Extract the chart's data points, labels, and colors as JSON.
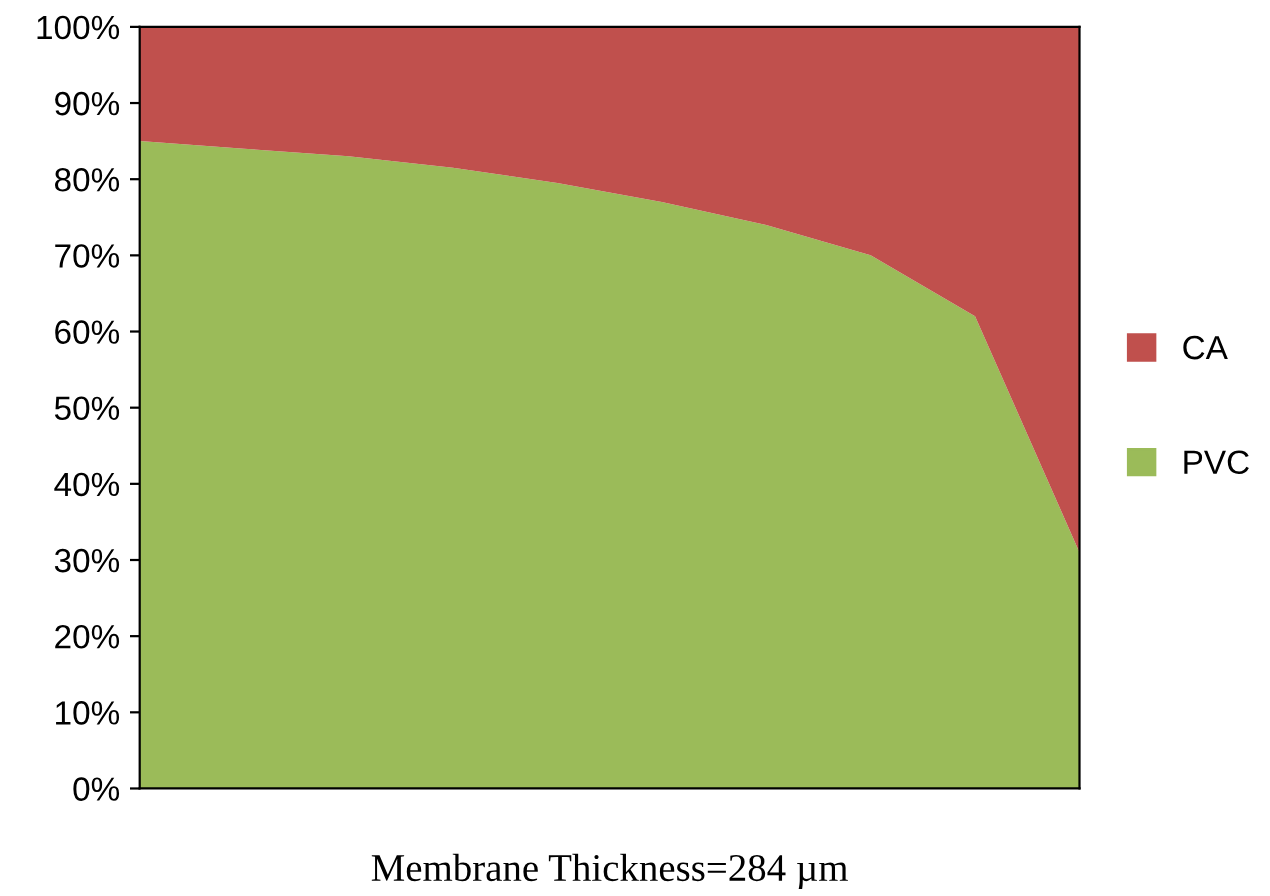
{
  "chart_data": {
    "type": "area",
    "stacked": true,
    "xlabel": "Membrane Thickness=284 µm",
    "categories": [
      null,
      null,
      null,
      null,
      null,
      null,
      null,
      null,
      null,
      null
    ],
    "series": [
      {
        "name": "PVC",
        "color": "#9bbb59",
        "values": [
          85,
          84,
          83,
          81.5,
          79.5,
          77,
          74,
          70,
          62,
          31
        ]
      },
      {
        "name": "CA",
        "color": "#c0504d",
        "values": [
          15,
          16,
          17,
          18.5,
          20.5,
          23,
          26,
          30,
          38,
          69
        ]
      }
    ],
    "ylim": [
      0,
      100
    ],
    "yticks": [
      {
        "value": 0,
        "label": "0%"
      },
      {
        "value": 10,
        "label": "10%"
      },
      {
        "value": 20,
        "label": "20%"
      },
      {
        "value": 30,
        "label": "30%"
      },
      {
        "value": 40,
        "label": "40%"
      },
      {
        "value": 50,
        "label": "50%"
      },
      {
        "value": 60,
        "label": "60%"
      },
      {
        "value": 70,
        "label": "70%"
      },
      {
        "value": 80,
        "label": "80%"
      },
      {
        "value": 90,
        "label": "90%"
      },
      {
        "value": 100,
        "label": "100%"
      }
    ],
    "grid": false,
    "legend": "right"
  }
}
